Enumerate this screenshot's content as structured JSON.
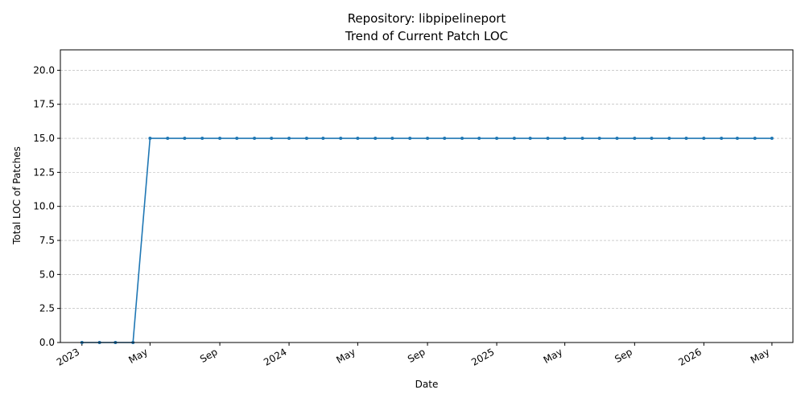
{
  "chart_data": {
    "type": "line",
    "title": "Repository: libpipelineport",
    "subtitle": "Trend of Current Patch LOC",
    "xlabel": "Date",
    "ylabel": "Total LOC of Patches",
    "ylim": [
      0,
      21.5
    ],
    "xlim": [
      "2022-11-24",
      "2026-06-07"
    ],
    "grid": "horizontal dashed",
    "y_ticks": [
      0.0,
      2.5,
      5.0,
      7.5,
      10.0,
      12.5,
      15.0,
      17.5,
      20.0
    ],
    "y_tick_labels": [
      "0.0",
      "2.5",
      "5.0",
      "7.5",
      "10.0",
      "12.5",
      "15.0",
      "17.5",
      "20.0"
    ],
    "x_ticks": [
      {
        "date": "2023-01-01",
        "label": "2023"
      },
      {
        "date": "2023-05-01",
        "label": "May"
      },
      {
        "date": "2023-09-01",
        "label": "Sep"
      },
      {
        "date": "2024-01-01",
        "label": "2024"
      },
      {
        "date": "2024-05-01",
        "label": "May"
      },
      {
        "date": "2024-09-01",
        "label": "Sep"
      },
      {
        "date": "2025-01-01",
        "label": "2025"
      },
      {
        "date": "2025-05-01",
        "label": "May"
      },
      {
        "date": "2025-09-01",
        "label": "Sep"
      },
      {
        "date": "2026-01-01",
        "label": "2026"
      },
      {
        "date": "2026-05-01",
        "label": "May"
      }
    ],
    "series": [
      {
        "color": "#1f77b4",
        "x": [
          "2023-01-01",
          "2023-02-01",
          "2023-03-01",
          "2023-04-01",
          "2023-05-01",
          "2023-06-01",
          "2023-07-01",
          "2023-08-01",
          "2023-09-01",
          "2023-10-01",
          "2023-11-01",
          "2023-12-01",
          "2024-01-01",
          "2024-02-01",
          "2024-03-01",
          "2024-04-01",
          "2024-05-01",
          "2024-06-01",
          "2024-07-01",
          "2024-08-01",
          "2024-09-01",
          "2024-10-01",
          "2024-11-01",
          "2024-12-01",
          "2025-01-01",
          "2025-02-01",
          "2025-03-01",
          "2025-04-01",
          "2025-05-01",
          "2025-06-01",
          "2025-07-01",
          "2025-08-01",
          "2025-09-01",
          "2025-10-01",
          "2025-11-01",
          "2025-12-01",
          "2026-01-01",
          "2026-02-01",
          "2026-03-01",
          "2026-04-01",
          "2026-05-01"
        ],
        "y": [
          0,
          0,
          0,
          0,
          15,
          15,
          15,
          15,
          15,
          15,
          15,
          15,
          15,
          15,
          15,
          15,
          15,
          15,
          15,
          15,
          15,
          15,
          15,
          15,
          15,
          15,
          15,
          15,
          15,
          15,
          15,
          15,
          15,
          15,
          15,
          15,
          15,
          15,
          15,
          15,
          15
        ]
      }
    ]
  }
}
